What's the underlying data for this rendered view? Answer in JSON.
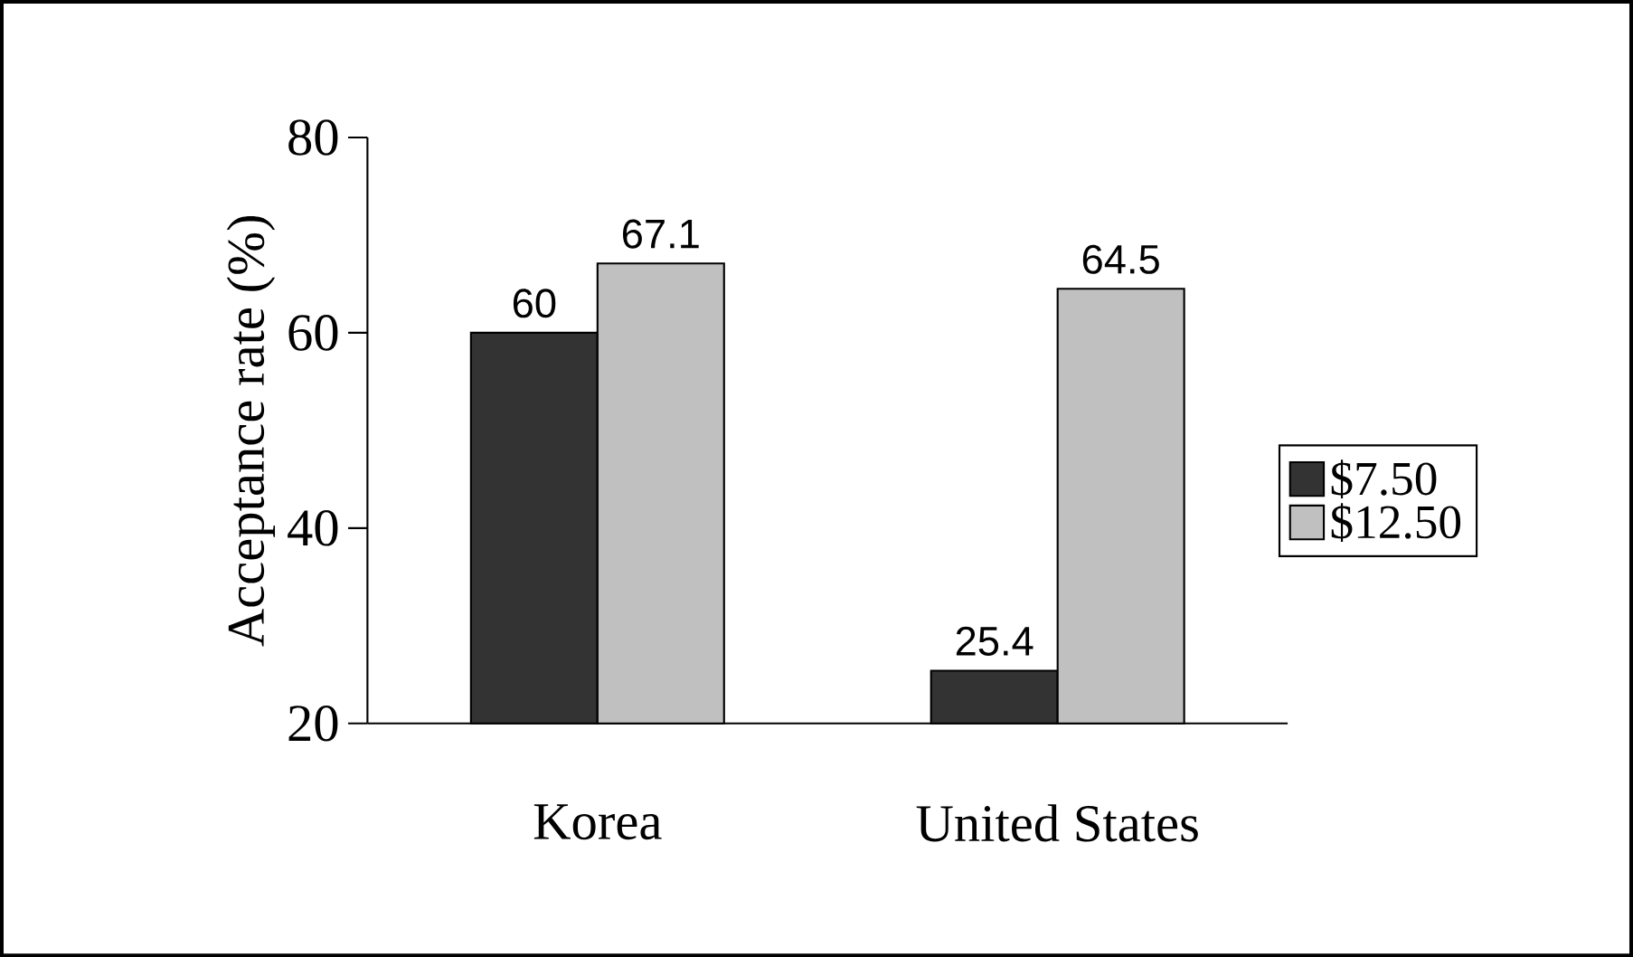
{
  "chart_data": {
    "type": "bar",
    "ylabel": "Acceptance rate (%)",
    "categories": [
      "Korea",
      "United States"
    ],
    "series": [
      {
        "name": "$7.50",
        "color": "#333333",
        "values": [
          60,
          25.4
        ]
      },
      {
        "name": "$12.50",
        "color": "#c0c0c0",
        "values": [
          67.1,
          64.5
        ]
      }
    ],
    "ylim": [
      20,
      80
    ],
    "yticks": [
      20,
      40,
      60,
      80
    ],
    "data_labels": true,
    "legend": "right",
    "grid": false
  }
}
